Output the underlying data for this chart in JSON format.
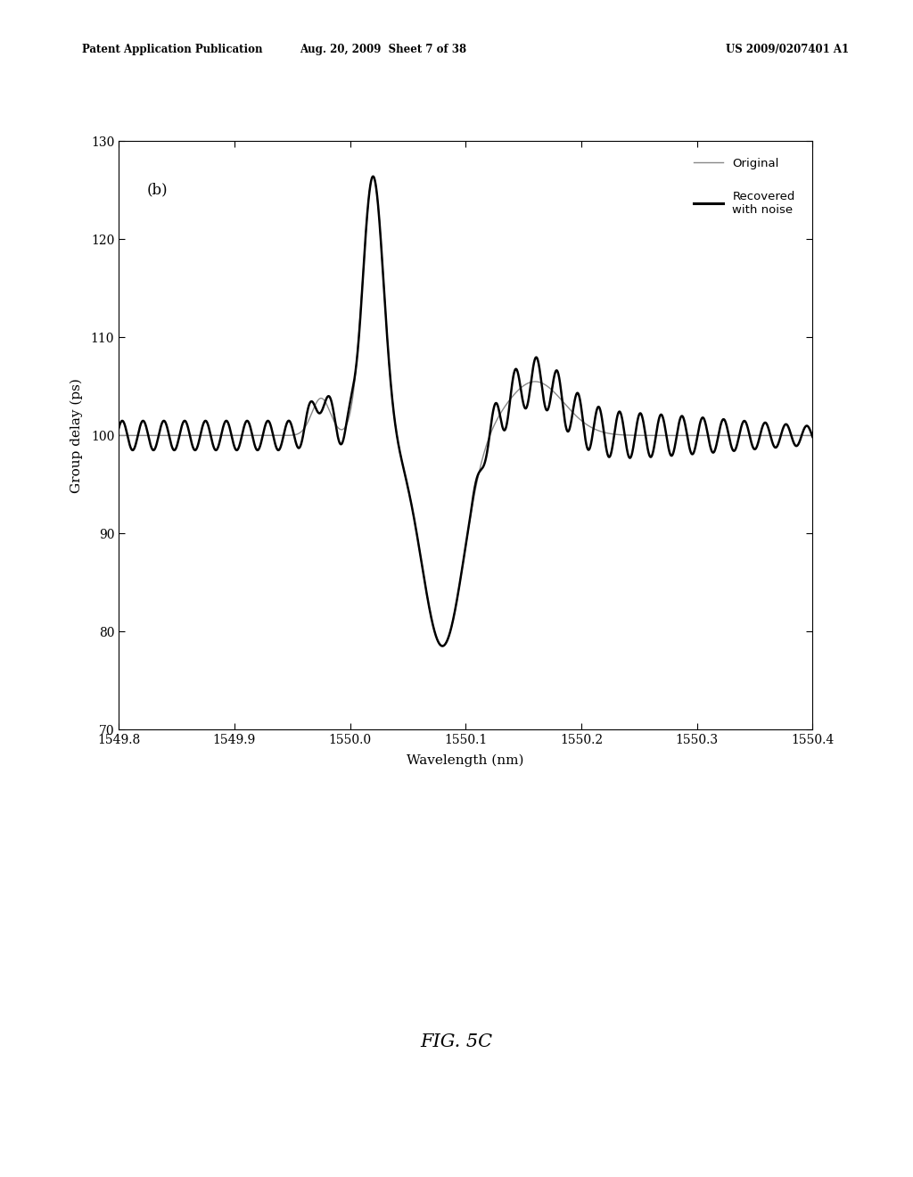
{
  "title_header_left": "Patent Application Publication",
  "title_header_mid": "Aug. 20, 2009  Sheet 7 of 38",
  "title_header_right": "US 2009/0207401 A1",
  "fig_label": "FIG. 5C",
  "panel_label": "(b)",
  "xlabel": "Wavelength (nm)",
  "ylabel": "Group delay (ps)",
  "xlim": [
    1549.8,
    1550.4
  ],
  "ylim": [
    70,
    130
  ],
  "xticks": [
    1549.8,
    1549.9,
    1550.0,
    1550.1,
    1550.2,
    1550.3,
    1550.4
  ],
  "yticks": [
    70,
    80,
    90,
    100,
    110,
    120,
    130
  ],
  "legend_original": "Original",
  "legend_recovered": "Recovered\nwith noise",
  "background_color": "#ffffff",
  "line_color_original": "#888888",
  "line_color_recovered": "#000000"
}
